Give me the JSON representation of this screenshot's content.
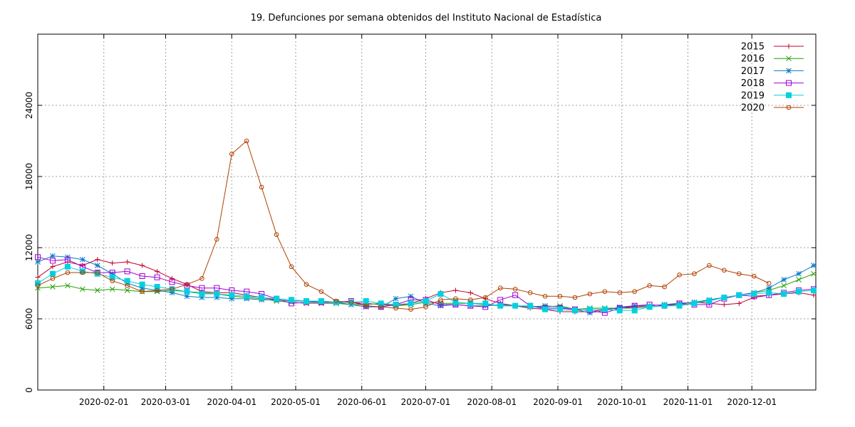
{
  "chart_data": {
    "type": "line",
    "title": "19. Defunciones por semana obtenidos del Instituto Nacional de Estadística",
    "xlabel": "",
    "ylabel": "",
    "grid": true,
    "legend_position": "top-right",
    "x_range": [
      "2020-01-01",
      "2020-12-31"
    ],
    "ylim": [
      0,
      30000
    ],
    "y_ticks": [
      0,
      6000,
      12000,
      18000,
      24000
    ],
    "y_tick_labels": [
      "0",
      "6000",
      "12000",
      "18000",
      "24000"
    ],
    "x_ticks": [
      "2020-02-01",
      "2020-03-01",
      "2020-04-01",
      "2020-05-01",
      "2020-06-01",
      "2020-07-01",
      "2020-08-01",
      "2020-09-01",
      "2020-10-01",
      "2020-11-01",
      "2020-12-01"
    ],
    "x_tick_labels": [
      "2020-02-01",
      "2020-03-01",
      "2020-04-01",
      "2020-05-01",
      "2020-06-01",
      "2020-07-01",
      "2020-08-01",
      "2020-09-01",
      "2020-10-01",
      "2020-11-01",
      "2020-12-01"
    ],
    "x": [
      "2020-01-01",
      "2020-01-08",
      "2020-01-15",
      "2020-01-22",
      "2020-01-29",
      "2020-02-05",
      "2020-02-12",
      "2020-02-19",
      "2020-02-26",
      "2020-03-04",
      "2020-03-11",
      "2020-03-18",
      "2020-03-25",
      "2020-04-01",
      "2020-04-08",
      "2020-04-15",
      "2020-04-22",
      "2020-04-29",
      "2020-05-06",
      "2020-05-13",
      "2020-05-20",
      "2020-05-27",
      "2020-06-03",
      "2020-06-10",
      "2020-06-17",
      "2020-06-24",
      "2020-07-01",
      "2020-07-08",
      "2020-07-15",
      "2020-07-22",
      "2020-07-29",
      "2020-08-05",
      "2020-08-12",
      "2020-08-19",
      "2020-08-26",
      "2020-09-02",
      "2020-09-09",
      "2020-09-16",
      "2020-09-23",
      "2020-09-30",
      "2020-10-07",
      "2020-10-14",
      "2020-10-21",
      "2020-10-28",
      "2020-11-04",
      "2020-11-11",
      "2020-11-18",
      "2020-11-25",
      "2020-12-02",
      "2020-12-09",
      "2020-12-16",
      "2020-12-23",
      "2020-12-30"
    ],
    "series": [
      {
        "name": "2015",
        "color": "#c0002d",
        "marker": "plus",
        "values": [
          9500,
          10400,
          10800,
          10500,
          11000,
          10700,
          10800,
          10500,
          10000,
          9400,
          8900,
          8300,
          8200,
          8200,
          8000,
          7800,
          7600,
          7500,
          7500,
          7500,
          7400,
          7400,
          7300,
          7200,
          7100,
          7300,
          7700,
          8200,
          8400,
          8200,
          7700,
          7300,
          7100,
          6900,
          6800,
          6600,
          6600,
          6600,
          6800,
          6900,
          7000,
          7100,
          7200,
          7300,
          7400,
          7300,
          7200,
          7300,
          7800,
          8000,
          8100,
          8200,
          8000
        ]
      },
      {
        "name": "2016",
        "color": "#22a000",
        "marker": "cross",
        "values": [
          8600,
          8700,
          8800,
          8500,
          8400,
          8500,
          8400,
          8300,
          8300,
          8400,
          8300,
          8200,
          8100,
          7900,
          7800,
          7700,
          7500,
          7400,
          7300,
          7300,
          7300,
          7200,
          7200,
          7300,
          7100,
          7200,
          7400,
          7300,
          7300,
          7300,
          7200,
          7100,
          7100,
          7000,
          7000,
          7100,
          6800,
          6900,
          6900,
          6900,
          6900,
          7000,
          7100,
          7200,
          7300,
          7600,
          7800,
          8000,
          8200,
          8400,
          8800,
          9300,
          9800
        ]
      },
      {
        "name": "2017",
        "color": "#0a7ac8",
        "marker": "star",
        "values": [
          10800,
          11300,
          11200,
          11000,
          10500,
          9800,
          9000,
          8600,
          8400,
          8200,
          7900,
          7800,
          7800,
          7700,
          7700,
          7600,
          7600,
          7500,
          7500,
          7400,
          7400,
          7200,
          7000,
          7000,
          7700,
          7900,
          7300,
          7100,
          7200,
          7100,
          7100,
          7200,
          7100,
          7000,
          7100,
          7000,
          6800,
          6500,
          6700,
          7000,
          7100,
          7100,
          7200,
          7300,
          7400,
          7600,
          7800,
          8000,
          8200,
          8600,
          9300,
          9800,
          10500
        ]
      },
      {
        "name": "2018",
        "color": "#a000d8",
        "marker": "square",
        "values": [
          11200,
          10900,
          11000,
          10400,
          9900,
          9900,
          10000,
          9600,
          9500,
          9100,
          8800,
          8600,
          8600,
          8400,
          8300,
          8100,
          7700,
          7300,
          7400,
          7400,
          7400,
          7500,
          7100,
          7000,
          7200,
          7600,
          7600,
          7200,
          7200,
          7100,
          7000,
          7600,
          8000,
          7100,
          6900,
          6900,
          6800,
          6700,
          6500,
          6900,
          7100,
          7200,
          7100,
          7300,
          7200,
          7200,
          7700,
          8000,
          7900,
          8000,
          8200,
          8400,
          8500
        ]
      },
      {
        "name": "2019",
        "color": "#00d0e0",
        "marker": "filled-square",
        "values": [
          9000,
          9800,
          10400,
          10000,
          9800,
          9500,
          9200,
          8900,
          8700,
          8500,
          8300,
          8100,
          8100,
          8000,
          7900,
          7800,
          7700,
          7600,
          7500,
          7500,
          7400,
          7400,
          7500,
          7300,
          7200,
          7300,
          7500,
          8100,
          7400,
          7300,
          7300,
          7100,
          7100,
          7100,
          6800,
          6800,
          6700,
          6800,
          6800,
          6700,
          6700,
          7000,
          7100,
          7100,
          7300,
          7500,
          7800,
          8000,
          8100,
          8200,
          8100,
          8300,
          8400
        ]
      },
      {
        "name": "2020",
        "color": "#b04000",
        "marker": "circle",
        "values": [
          8800,
          9400,
          9900,
          9900,
          9900,
          9200,
          8800,
          8300,
          8400,
          8500,
          8900,
          9400,
          12700,
          19900,
          21000,
          17100,
          13100,
          10400,
          8900,
          8300,
          7500,
          7400,
          7100,
          7000,
          6900,
          6800,
          7000,
          7600,
          7700,
          7600,
          7800,
          8600,
          8500,
          8200,
          7900,
          7900,
          7800,
          8100,
          8300,
          8200,
          8300,
          8800,
          8700,
          9700,
          9800,
          10500,
          10100,
          9800,
          9600,
          9000,
          null,
          null,
          null
        ]
      }
    ]
  }
}
